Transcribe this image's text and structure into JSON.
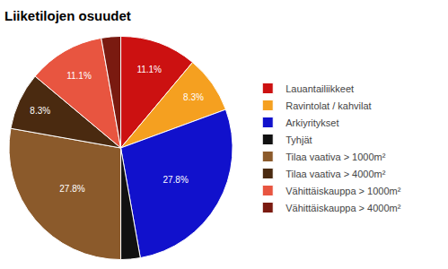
{
  "chart_data": {
    "type": "pie",
    "title": "Liiketilojen osuudet",
    "categories": [
      "Lauantailiikkeet",
      "Ravintolat / kahvilat",
      "Arkiyritykset",
      "Tyhjät",
      "Tilaa vaativa > 1000m²",
      "Tilaa vaativa > 4000m²",
      "Vähittäiskauppa > 1000m²",
      "Vähittäiskauppa > 4000m²"
    ],
    "values": [
      11.1,
      8.3,
      27.8,
      2.8,
      27.8,
      8.3,
      11.1,
      2.8
    ],
    "value_labels": [
      "11.1%",
      "8.3%",
      "27.8%",
      null,
      "27.8%",
      "8.3%",
      "11.1%",
      null
    ],
    "colors": [
      "#cc1111",
      "#f5a020",
      "#1111cc",
      "#111111",
      "#8b5a2b",
      "#4a2a10",
      "#e85540",
      "#7a1a10"
    ],
    "data_labels": true,
    "legend": "right"
  }
}
